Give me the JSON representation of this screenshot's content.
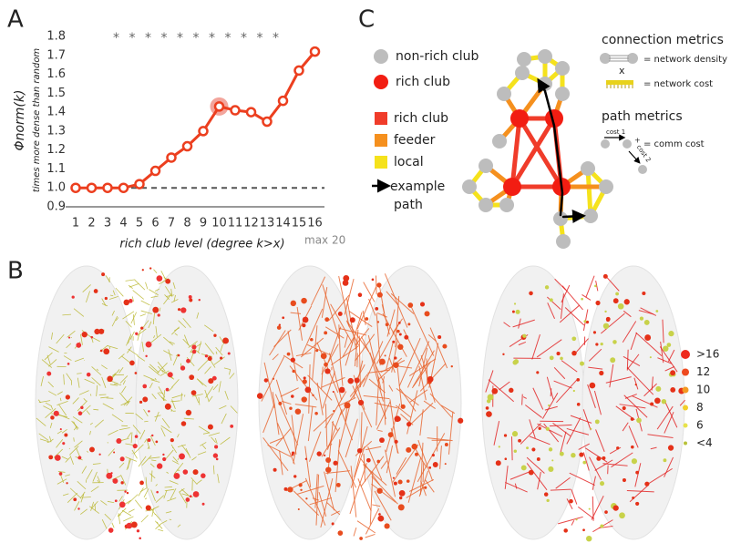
{
  "chart_data": {
    "type": "line",
    "y_label": "Φnorm(k)",
    "y_sublabel": "times more dense than random",
    "x_label": "rich club level (degree k>x)",
    "x_note": "max 20",
    "categories": [
      "1",
      "2",
      "3",
      "4",
      "5",
      "6",
      "7",
      "8",
      "9",
      "10",
      "11",
      "12",
      "13",
      "14",
      "15",
      "16"
    ],
    "values": [
      1.0,
      1.0,
      1.0,
      1.0,
      1.02,
      1.09,
      1.16,
      1.22,
      1.3,
      1.43,
      1.41,
      1.4,
      1.35,
      1.46,
      1.62,
      1.72
    ],
    "color": "#ec3f1f",
    "highlight": "10",
    "highlight_color": "#f3a59c",
    "reference_line": 1,
    "ylim": [
      0.9,
      1.8
    ],
    "yticks": [
      0.9,
      {
        "value": 1,
        "label": "1.0"
      },
      1.1,
      1.2,
      1.3,
      1.4,
      1.5,
      1.6,
      1.7,
      1.8
    ],
    "significance_label": "*",
    "significant_categories": [
      "4",
      "5",
      "6",
      "7",
      "8",
      "9",
      "10",
      "11",
      "12",
      "13",
      "14"
    ]
  },
  "panel_labels": [
    "A",
    "B",
    "C"
  ],
  "diagram": {
    "node_legend": [
      {
        "label": "non-rich club",
        "color": "#bdbdbd"
      },
      {
        "label": "rich club",
        "color": "#f21d12"
      }
    ],
    "edge_legend": [
      {
        "label": "rich club",
        "color": "#f03c2a"
      },
      {
        "label": "feeder",
        "color": "#f5901e"
      },
      {
        "label": "local",
        "color": "#f5e21c"
      }
    ],
    "path_label": [
      "example",
      "path"
    ],
    "connection_metrics": {
      "title": "connection metrics",
      "density": "= network density",
      "times": "x",
      "cost": "= network cost"
    },
    "path_metrics": {
      "title": "path metrics",
      "cost1": "cost 1",
      "plus": "+",
      "cost2": "cost 2",
      "result": "= comm cost"
    }
  },
  "brain_legend": [
    {
      "label": ">16",
      "color": "#ee2a1c"
    },
    {
      "label": "12",
      "color": "#ee4a1f"
    },
    {
      "label": "10",
      "color": "#f39a22"
    },
    {
      "label": "8",
      "color": "#f2cf2a"
    },
    {
      "label": "6",
      "color": "#e8e24a"
    },
    {
      "label": "<4",
      "color": "#b8c23a"
    }
  ]
}
